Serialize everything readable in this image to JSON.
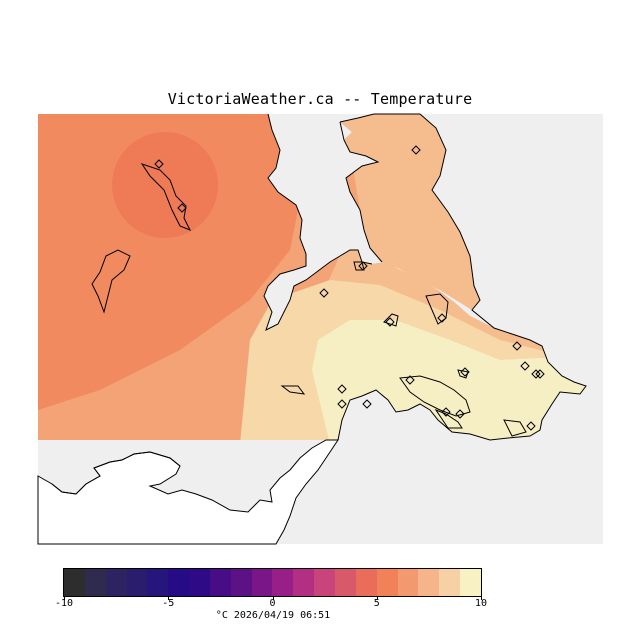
{
  "title": "VictoriaWeather.ca -- Temperature",
  "colorbar": {
    "colors": [
      "#2d2d2d",
      "#2e2b4e",
      "#2c2360",
      "#2a1d6e",
      "#26157b",
      "#250c86",
      "#2f0a87",
      "#470d87",
      "#5d1186",
      "#7a1688",
      "#981e88",
      "#b22f83",
      "#c8447a",
      "#d8596a",
      "#e96d58",
      "#f08159",
      "#f3996f",
      "#f5b48a",
      "#f7d1a5",
      "#f7f1c4"
    ],
    "ticks": [
      {
        "label": "-10",
        "value": -10
      },
      {
        "label": "-5",
        "value": -5
      },
      {
        "label": "0",
        "value": 0
      },
      {
        "label": "5",
        "value": 5
      },
      {
        "label": "10",
        "value": 10
      }
    ],
    "min": -10,
    "max": 10,
    "unit_time": "°C  2026/04/19 06:51"
  },
  "stations": {
    "count": 19,
    "values_celsius": "not printed"
  },
  "colors": {
    "map_bg": "#efefef",
    "zone_5_6": "#ee7a56",
    "zone_6_7": "#f18b5f",
    "zone_7_8": "#f3a375",
    "zone_8_9": "#f5bc8e",
    "zone_9_10": "#f7d8a9",
    "zone_10": "#f7efc4"
  }
}
